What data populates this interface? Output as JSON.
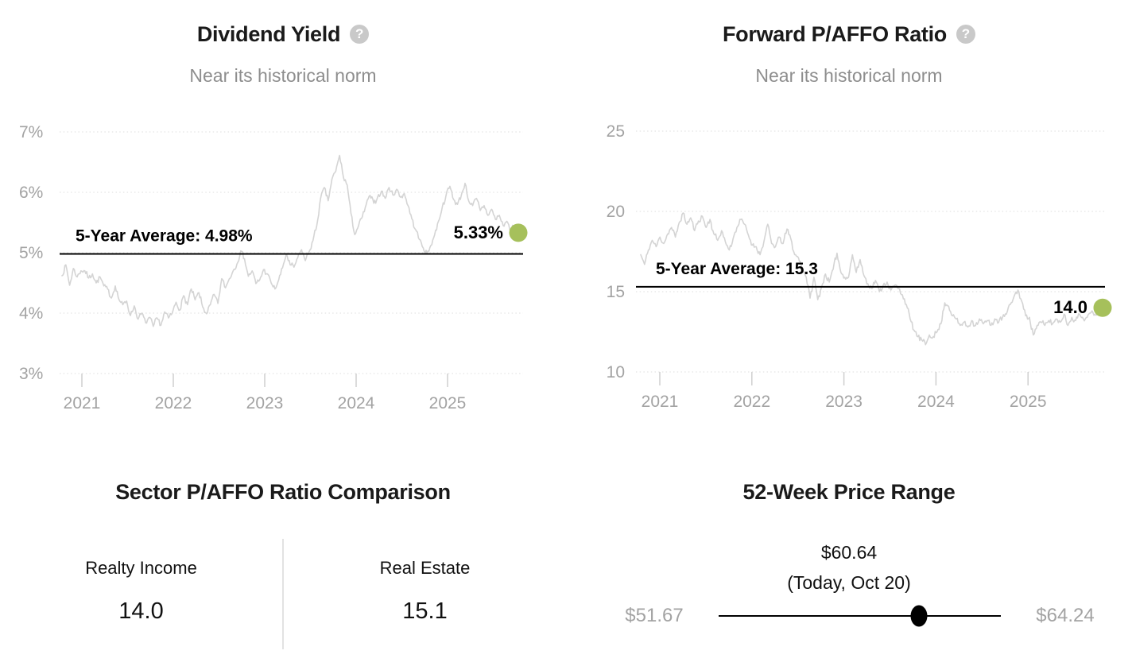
{
  "help_glyph": "?",
  "colors": {
    "accent_green": "#a6c05b",
    "series_line": "#d4d4d4",
    "grid": "#dedede",
    "axis_text": "#a3a3a3",
    "subtitle_text": "#8e8e8e",
    "average_line": "#000000",
    "divider": "#e2e2e2"
  },
  "chart_data": [
    {
      "type": "line",
      "title": "Dividend Yield",
      "subtitle": "Near its historical norm",
      "avg_label": "5-Year Average: 4.98%",
      "avg_value": 4.98,
      "current_label": "5.33%",
      "current_value": 5.33,
      "ylim": [
        3,
        7
      ],
      "grid": true,
      "yticks": [
        {
          "value": 7,
          "label": "7%"
        },
        {
          "value": 6,
          "label": "6%"
        },
        {
          "value": 5,
          "label": "5%"
        },
        {
          "value": 4,
          "label": "4%"
        },
        {
          "value": 3,
          "label": "3%"
        }
      ],
      "xticks": [
        "2021",
        "2022",
        "2023",
        "2024",
        "2025"
      ],
      "values": [
        4.62,
        4.8,
        4.46,
        4.74,
        4.6,
        4.7,
        4.7,
        4.58,
        4.65,
        4.5,
        4.6,
        4.45,
        4.4,
        4.25,
        4.45,
        4.22,
        4.14,
        4.2,
        3.96,
        4.12,
        3.9,
        4.0,
        3.84,
        3.93,
        3.78,
        3.92,
        3.8,
        4.02,
        3.92,
        4.0,
        4.18,
        4.05,
        4.29,
        4.14,
        4.4,
        4.22,
        4.34,
        4.1,
        3.99,
        4.14,
        4.31,
        4.16,
        4.57,
        4.42,
        4.57,
        4.7,
        4.81,
        5.03,
        4.9,
        4.61,
        4.7,
        4.49,
        4.55,
        4.72,
        4.65,
        4.5,
        4.4,
        4.55,
        4.75,
        4.98,
        4.8,
        4.76,
        4.92,
        5.05,
        4.87,
        5.02,
        5.2,
        5.45,
        5.9,
        6.08,
        5.86,
        6.22,
        6.35,
        6.61,
        6.25,
        6.12,
        5.65,
        5.3,
        5.45,
        5.6,
        5.8,
        5.95,
        5.82,
        5.92,
        6.02,
        5.9,
        6.08,
        5.96,
        6.05,
        5.92,
        5.98,
        5.78,
        5.56,
        5.38,
        5.22,
        5.08,
        4.98,
        5.12,
        5.3,
        5.52,
        5.75,
        5.95,
        6.1,
        5.88,
        5.8,
        5.95,
        6.15,
        5.85,
        5.78,
        5.9,
        5.7,
        5.78,
        5.62,
        5.72,
        5.55,
        5.62,
        5.45,
        5.52,
        5.38,
        5.44,
        5.33
      ]
    },
    {
      "type": "line",
      "title": "Forward P/AFFO Ratio",
      "subtitle": "Near its historical norm",
      "avg_label": "5-Year Average: 15.3",
      "avg_value": 15.3,
      "current_label": "14.0",
      "current_value": 14.0,
      "ylim": [
        10,
        25
      ],
      "grid": true,
      "yticks": [
        {
          "value": 25,
          "label": "25"
        },
        {
          "value": 20,
          "label": "20"
        },
        {
          "value": 15,
          "label": "15"
        },
        {
          "value": 10,
          "label": "10"
        }
      ],
      "xticks": [
        "2021",
        "2022",
        "2023",
        "2024",
        "2025"
      ],
      "values": [
        17.3,
        16.7,
        17.6,
        18.2,
        17.8,
        18.4,
        18.0,
        18.6,
        19.0,
        18.4,
        19.3,
        19.9,
        19.2,
        19.6,
        18.8,
        19.4,
        19.7,
        19.0,
        19.5,
        18.6,
        18.2,
        18.8,
        18.1,
        17.6,
        18.3,
        19.0,
        19.5,
        19.2,
        18.5,
        17.9,
        17.8,
        17.3,
        18.1,
        19.2,
        18.0,
        17.8,
        18.4,
        18.0,
        18.9,
        18.3,
        17.3,
        17.1,
        16.5,
        15.9,
        14.6,
        15.9,
        14.5,
        15.3,
        16.1,
        15.6,
        16.4,
        17.4,
        16.2,
        15.9,
        15.9,
        17.3,
        16.2,
        17.0,
        16.0,
        15.5,
        15.2,
        15.7,
        15.0,
        15.4,
        15.6,
        15.1,
        15.4,
        15.2,
        14.8,
        14.2,
        13.3,
        12.6,
        12.2,
        12.0,
        11.7,
        12.3,
        12.2,
        12.5,
        13.0,
        14.3,
        14.1,
        13.5,
        13.3,
        12.9,
        13.1,
        12.8,
        13.2,
        12.9,
        13.3,
        13.0,
        13.2,
        12.9,
        13.3,
        13.1,
        13.4,
        13.6,
        14.2,
        14.7,
        15.1,
        14.4,
        13.5,
        13.4,
        12.3,
        12.9,
        13.1,
        12.9,
        13.2,
        13.0,
        13.3,
        13.1,
        13.6,
        12.9,
        13.4,
        13.2,
        13.6,
        13.3,
        13.4,
        13.7,
        13.6,
        13.8,
        14.0
      ]
    }
  ],
  "comparison": {
    "title": "Sector P/AFFO Ratio Comparison",
    "items": [
      {
        "label": "Realty Income",
        "value": "14.0"
      },
      {
        "label": "Real Estate",
        "value": "15.1"
      }
    ]
  },
  "price_range": {
    "title": "52-Week Price Range",
    "current_price": "$60.64",
    "current_note": "(Today, Oct 20)",
    "low": "$51.67",
    "high": "$64.24",
    "position_pct": 71
  }
}
